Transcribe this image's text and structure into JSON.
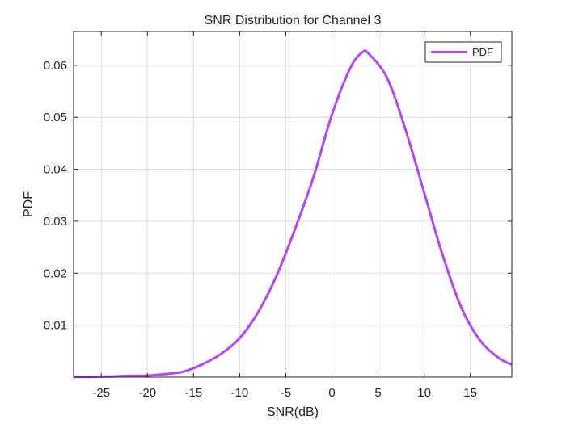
{
  "chart_data": {
    "type": "line",
    "title": "SNR Distribution for Channel 3",
    "xlabel": "SNR(dB)",
    "ylabel": "PDF",
    "xlim": [
      -28,
      19.5
    ],
    "ylim": [
      0,
      0.0665
    ],
    "xticks": [
      -25,
      -20,
      -15,
      -10,
      -5,
      0,
      5,
      10,
      15
    ],
    "yticks": [
      0.01,
      0.02,
      0.03,
      0.04,
      0.05,
      0.06
    ],
    "ytick_labels": [
      "0.01",
      "0.02",
      "0.03",
      "0.04",
      "0.05",
      "0.06"
    ],
    "grid": true,
    "legend_position": "top-right",
    "series": [
      {
        "name": "PDF",
        "color": "#b347f2",
        "x": [
          -28,
          -26,
          -24,
          -22,
          -20,
          -18,
          -16,
          -14,
          -12,
          -10,
          -8,
          -6,
          -4,
          -2,
          0,
          2,
          3.3,
          4,
          6,
          8,
          10,
          12,
          14,
          16,
          18,
          19.5
        ],
        "y": [
          4e-05,
          6e-05,
          0.00012,
          0.00025,
          0.0003,
          0.0006,
          0.0011,
          0.0025,
          0.0045,
          0.0075,
          0.0125,
          0.0195,
          0.0285,
          0.0385,
          0.0505,
          0.0595,
          0.0625,
          0.0622,
          0.0575,
          0.0475,
          0.0355,
          0.0235,
          0.0135,
          0.0072,
          0.0038,
          0.0024
        ]
      }
    ]
  }
}
